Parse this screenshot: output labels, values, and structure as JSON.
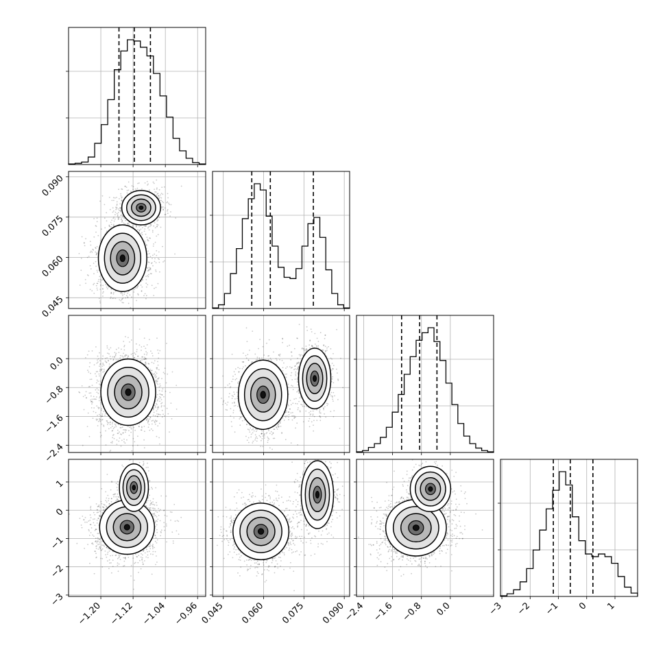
{
  "chart_data": {
    "type": "corner",
    "title": "",
    "n_params": 4,
    "param_labels": [
      "",
      "",
      "",
      ""
    ],
    "axis_ranges": [
      [
        -1.28,
        -0.94
      ],
      [
        0.041,
        0.092
      ],
      [
        -2.6,
        1.2
      ],
      [
        -3.05,
        1.8
      ]
    ],
    "ticks": [
      [
        "-1.20",
        "-1.12",
        "-1.04",
        "-0.96"
      ],
      [
        "0.045",
        "0.060",
        "0.075",
        "0.090"
      ],
      [
        "-2.4",
        "-1.6",
        "-0.8",
        "0.0"
      ],
      [
        "-3",
        "-2",
        "-1",
        "0",
        "1"
      ]
    ],
    "tick_values": [
      [
        -1.2,
        -1.12,
        -1.04,
        -0.96
      ],
      [
        0.045,
        0.06,
        0.075,
        0.09
      ],
      [
        -2.4,
        -1.6,
        -0.8,
        0.0
      ],
      [
        -3,
        -2,
        -1,
        0,
        1
      ]
    ],
    "grid": true,
    "quantiles": [
      [
        -1.155,
        -1.117,
        -1.077
      ],
      [
        0.0556,
        0.0625,
        0.0785
      ],
      [
        -1.35,
        -0.85,
        -0.37
      ],
      [
        -1.18,
        -0.58,
        0.22
      ]
    ],
    "histograms": [
      [
        0.005,
        0.01,
        0.02,
        0.06,
        0.17,
        0.32,
        0.52,
        0.76,
        0.91,
        1.0,
        0.99,
        0.94,
        0.87,
        0.73,
        0.55,
        0.38,
        0.21,
        0.11,
        0.05,
        0.015,
        0.005
      ],
      [
        0.005,
        0.03,
        0.12,
        0.28,
        0.48,
        0.72,
        0.88,
        1.0,
        0.95,
        0.74,
        0.5,
        0.33,
        0.25,
        0.24,
        0.32,
        0.5,
        0.68,
        0.73,
        0.57,
        0.31,
        0.12,
        0.03,
        0.005
      ],
      [
        0.005,
        0.015,
        0.04,
        0.07,
        0.12,
        0.2,
        0.32,
        0.46,
        0.62,
        0.76,
        0.89,
        0.95,
        0.99,
        0.88,
        0.73,
        0.55,
        0.38,
        0.23,
        0.13,
        0.07,
        0.035,
        0.015,
        0.005
      ],
      [
        0.005,
        0.02,
        0.05,
        0.11,
        0.21,
        0.35,
        0.5,
        0.66,
        0.8,
        0.94,
        0.84,
        0.6,
        0.42,
        0.32,
        0.3,
        0.32,
        0.3,
        0.25,
        0.15,
        0.07,
        0.025
      ]
    ],
    "density_modes": [
      [
        [
          {
            "x": -1.146,
            "y": 0.0597,
            "sx": 0.03,
            "sy": 0.0062,
            "w": 0.62
          },
          {
            "x": -1.1,
            "y": 0.0785,
            "sx": 0.024,
            "sy": 0.0032,
            "w": 0.38
          }
        ],
        [
          {
            "x": -1.132,
            "y": -0.93,
            "sx": 0.034,
            "sy": 0.46,
            "w": 1.0
          }
        ],
        [
          {
            "x": 0.0598,
            "y": -1.0,
            "sx": 0.0046,
            "sy": 0.48,
            "w": 0.62
          },
          {
            "x": 0.079,
            "y": -0.55,
            "sx": 0.003,
            "sy": 0.42,
            "w": 0.38
          }
        ],
        [
          {
            "x": -1.135,
            "y": -0.6,
            "sx": 0.034,
            "sy": 0.48,
            "w": 0.85
          },
          {
            "x": -1.118,
            "y": 0.8,
            "sx": 0.018,
            "sy": 0.42,
            "w": 0.15
          }
        ],
        [
          {
            "x": 0.059,
            "y": -0.75,
            "sx": 0.0052,
            "sy": 0.5,
            "w": 0.62
          },
          {
            "x": 0.08,
            "y": 0.55,
            "sx": 0.003,
            "sy": 0.6,
            "w": 0.38
          }
        ],
        [
          {
            "x": -0.95,
            "y": -0.62,
            "sx": 0.42,
            "sy": 0.5,
            "w": 0.82
          },
          {
            "x": -0.55,
            "y": 0.75,
            "sx": 0.28,
            "sy": 0.4,
            "w": 0.18
          }
        ]
      ]
    ]
  }
}
